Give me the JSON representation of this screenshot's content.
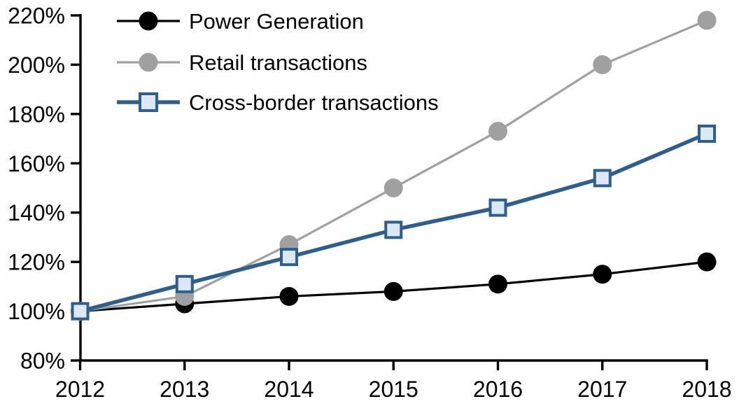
{
  "chart_data": {
    "type": "line",
    "title": "",
    "xlabel": "",
    "ylabel": "",
    "x": [
      2012,
      2013,
      2014,
      2015,
      2016,
      2017,
      2018
    ],
    "x_tick_labels": [
      "2012",
      "2013",
      "2014",
      "2015",
      "2016",
      "2017",
      "2018"
    ],
    "ylim": [
      80,
      220
    ],
    "y_tick_step": 20,
    "y_tick_labels": [
      "80%",
      "100%",
      "120%",
      "140%",
      "160%",
      "180%",
      "200%",
      "220%"
    ],
    "grid": false,
    "legend_position": "top-left",
    "axis_color": "#000000",
    "text_color": "#000000",
    "series": [
      {
        "name": "Power Generation",
        "values": [
          100,
          103,
          106,
          108,
          111,
          115,
          120
        ],
        "color": "#000000",
        "marker": "circle",
        "marker_fill": "#000000",
        "line_width": 3.2
      },
      {
        "name": "Retail transactions",
        "values": [
          100,
          106,
          127,
          150,
          173,
          200,
          218
        ],
        "color": "#a0a0a0",
        "marker": "circle",
        "marker_fill": "#a0a0a0",
        "line_width": 3.2
      },
      {
        "name": "Cross-border transactions",
        "values": [
          100,
          111,
          122,
          133,
          142,
          154,
          172
        ],
        "color": "#2e5f8c",
        "marker": "square",
        "marker_fill": "#dce8f5",
        "line_width": 5.5
      }
    ]
  }
}
